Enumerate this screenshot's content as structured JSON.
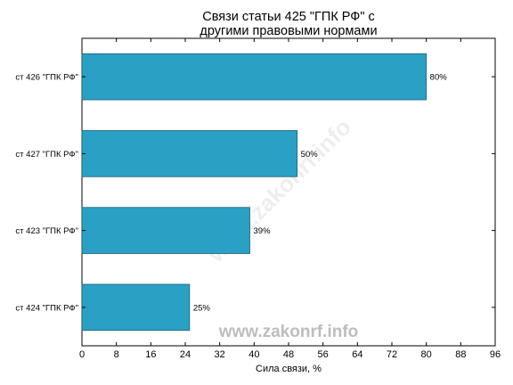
{
  "chart_data": {
    "type": "bar",
    "orientation": "horizontal",
    "title_lines": [
      "Связи статьи 425 \"ГПК РФ\" с",
      "другими правовыми нормами"
    ],
    "xlabel": "Сила связи, %",
    "ylabel": "",
    "categories": [
      "ст 426 \"ГПК РФ\"",
      "ст 427 \"ГПК РФ\"",
      "ст 423 \"ГПК РФ\"",
      "ст 424 \"ГПК РФ\""
    ],
    "values": [
      80,
      50,
      39,
      25
    ],
    "value_labels": [
      "80%",
      "50%",
      "39%",
      "25%"
    ],
    "xlim": [
      0,
      96
    ],
    "xticks": [
      "0",
      "8",
      "16",
      "24",
      "32",
      "40",
      "48",
      "56",
      "64",
      "72",
      "80",
      "88",
      "96"
    ],
    "bar_color": "#2aa0c5",
    "grid": false,
    "legend": "none"
  },
  "watermark": {
    "text": "www.zakonrf.info",
    "diagonal_text": "www.zakonrf.info"
  }
}
